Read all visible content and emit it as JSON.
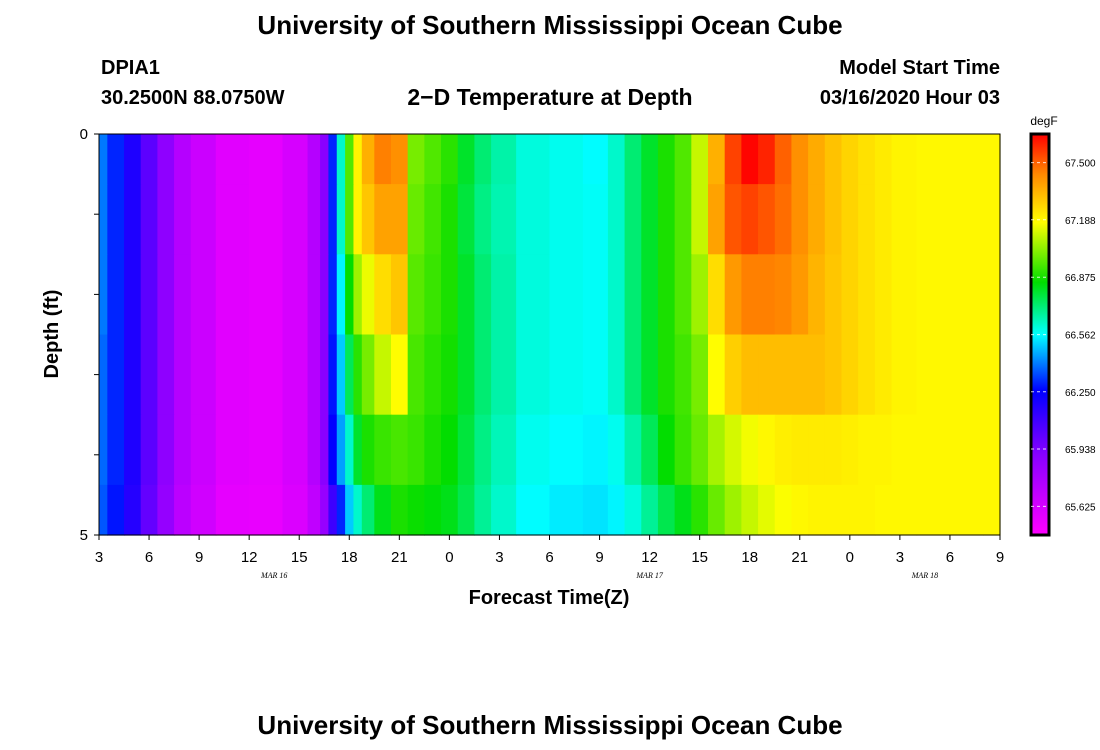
{
  "page": {
    "title_top": "University of Southern Mississippi Ocean Cube",
    "title_bottom": "University of Southern Mississippi Ocean Cube",
    "station_id": "DPIA1",
    "station_coords": "30.2500N 88.0750W",
    "plot_title": "2−D Temperature at Depth",
    "model_start_label": "Model Start Time",
    "model_start_value": "03/16/2020 Hour 03"
  },
  "chart_data": {
    "type": "heatmap",
    "title": "2−D Temperature at Depth",
    "xlabel": "Forecast Time(Z)",
    "ylabel": "Depth (ft)",
    "x_range_hours": [
      0,
      54
    ],
    "y_range": [
      0,
      5
    ],
    "x_ticks": [
      "3",
      "6",
      "9",
      "12",
      "15",
      "18",
      "21",
      "0",
      "3",
      "6",
      "9",
      "12",
      "15",
      "18",
      "21",
      "0",
      "3",
      "6",
      "9"
    ],
    "y_ticks": [
      "0",
      "5"
    ],
    "date_labels": [
      {
        "label": "MAR 16",
        "at_hour": 10.5
      },
      {
        "label": "MAR 17",
        "at_hour": 33
      },
      {
        "label": "MAR 18",
        "at_hour": 49.5
      }
    ],
    "colorbar": {
      "unit": "degF",
      "min": 65.469,
      "max": 67.656,
      "tick_values": [
        65.625,
        65.938,
        66.25,
        66.562,
        66.875,
        67.188,
        67.5
      ],
      "tick_labels": [
        "65.625",
        "65.938",
        "66.250",
        "66.562",
        "66.875",
        "67.188",
        "67.500"
      ]
    },
    "depth_rows": [
      0.25,
      1.0,
      2.0,
      3.0,
      4.0,
      4.75
    ],
    "x_hours": [
      0,
      1,
      2,
      3,
      4,
      5,
      6,
      8,
      10,
      12,
      13,
      13.5,
      14,
      14.5,
      15,
      15.5,
      16,
      17,
      18,
      19,
      20,
      21,
      22,
      23,
      24,
      26,
      28,
      30,
      31,
      32,
      33,
      34,
      35,
      36,
      37,
      38,
      39,
      40,
      41,
      42,
      43,
      44,
      45,
      46,
      47,
      48,
      50,
      52,
      54
    ],
    "values": [
      [
        66.4,
        66.3,
        66.18,
        66.02,
        65.88,
        65.74,
        65.66,
        65.58,
        65.56,
        65.62,
        65.74,
        65.9,
        66.3,
        66.62,
        66.95,
        67.2,
        67.35,
        67.45,
        67.42,
        67.0,
        66.95,
        66.9,
        66.8,
        66.72,
        66.66,
        66.6,
        66.58,
        66.56,
        66.62,
        66.72,
        66.8,
        66.88,
        66.95,
        67.1,
        67.35,
        67.55,
        67.65,
        67.6,
        67.5,
        67.42,
        67.36,
        67.31,
        67.27,
        67.24,
        67.22,
        67.2,
        67.19,
        67.19,
        67.19
      ],
      [
        66.4,
        66.3,
        66.18,
        66.02,
        65.88,
        65.74,
        65.66,
        65.58,
        65.56,
        65.62,
        65.74,
        65.9,
        66.3,
        66.62,
        66.95,
        67.2,
        67.3,
        67.38,
        67.38,
        66.98,
        66.93,
        66.88,
        66.78,
        66.7,
        66.65,
        66.6,
        66.58,
        66.57,
        66.62,
        66.72,
        66.8,
        66.88,
        66.95,
        67.1,
        67.38,
        67.52,
        67.55,
        67.52,
        67.48,
        67.42,
        67.36,
        67.31,
        67.27,
        67.24,
        67.22,
        67.2,
        67.19,
        67.19,
        67.19
      ],
      [
        66.4,
        66.3,
        66.18,
        66.02,
        65.88,
        65.74,
        65.66,
        65.58,
        65.56,
        65.62,
        65.74,
        65.9,
        66.3,
        66.55,
        66.85,
        67.05,
        67.15,
        67.25,
        67.3,
        66.96,
        66.92,
        66.88,
        66.8,
        66.72,
        66.66,
        66.6,
        66.58,
        66.57,
        66.62,
        66.72,
        66.8,
        66.88,
        66.95,
        67.05,
        67.25,
        67.4,
        67.45,
        67.45,
        67.44,
        67.4,
        67.34,
        67.3,
        67.27,
        67.24,
        67.22,
        67.2,
        67.19,
        67.19,
        67.19
      ],
      [
        66.38,
        66.3,
        66.18,
        66.02,
        65.88,
        65.74,
        65.66,
        65.58,
        65.56,
        65.62,
        65.74,
        65.9,
        66.28,
        66.5,
        66.75,
        66.9,
        67.0,
        67.1,
        67.18,
        66.94,
        66.9,
        66.87,
        66.8,
        66.72,
        66.66,
        66.6,
        66.58,
        66.57,
        66.62,
        66.72,
        66.8,
        66.88,
        66.93,
        67.0,
        67.18,
        67.28,
        67.32,
        67.32,
        67.32,
        67.32,
        67.32,
        67.3,
        67.27,
        67.24,
        67.22,
        67.2,
        67.19,
        67.19,
        67.19
      ],
      [
        66.38,
        66.3,
        66.18,
        66.02,
        65.88,
        65.74,
        65.66,
        65.58,
        65.56,
        65.62,
        65.74,
        65.9,
        66.25,
        66.45,
        66.62,
        66.8,
        66.88,
        66.92,
        66.94,
        66.92,
        66.88,
        66.85,
        66.78,
        66.7,
        66.64,
        66.58,
        66.56,
        66.55,
        66.58,
        66.66,
        66.75,
        66.85,
        66.92,
        66.98,
        67.06,
        67.12,
        67.16,
        67.19,
        67.21,
        67.22,
        67.22,
        67.22,
        67.21,
        67.2,
        67.2,
        67.19,
        67.19,
        67.19,
        67.19
      ],
      [
        66.36,
        66.28,
        66.16,
        66.0,
        65.86,
        65.72,
        65.64,
        65.56,
        65.55,
        65.6,
        65.7,
        65.85,
        66.1,
        66.3,
        66.5,
        66.62,
        66.72,
        66.82,
        66.88,
        66.86,
        66.84,
        66.82,
        66.76,
        66.68,
        66.62,
        66.56,
        66.54,
        66.53,
        66.55,
        66.6,
        66.68,
        66.76,
        66.82,
        66.9,
        66.98,
        67.05,
        67.1,
        67.14,
        67.17,
        67.19,
        67.2,
        67.2,
        67.2,
        67.2,
        67.19,
        67.19,
        67.19,
        67.19,
        67.19
      ]
    ]
  }
}
